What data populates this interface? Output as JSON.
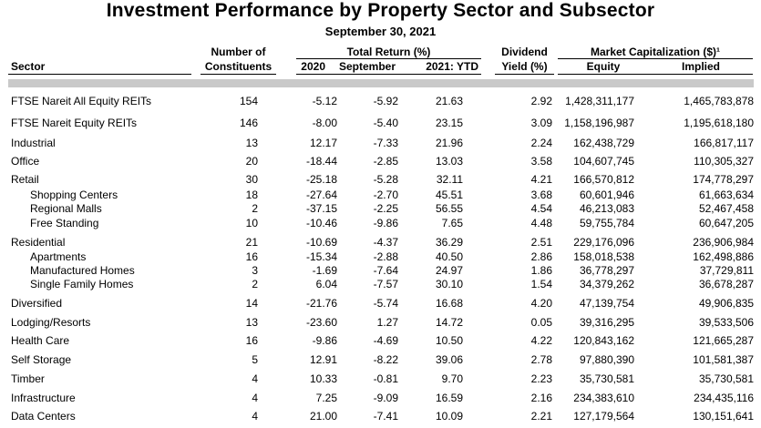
{
  "title": "Investment Performance by Property Sector and Subsector",
  "subtitle": "September 30, 2021",
  "headers": {
    "num_line1": "Number of",
    "num_line2": "Constituents",
    "total_return_group": "Total Return (%)",
    "dividend_line1": "Dividend",
    "dividend_line2": "Yield (%)",
    "market_cap_group": "Market Capitalization ($)¹",
    "sector": "Sector",
    "y2020": "2020",
    "september": "September",
    "ytd": "2021: YTD",
    "equity": "Equity",
    "implied": "Implied"
  },
  "rows": [
    {
      "sector": "FTSE Nareit All Equity REITs",
      "n": "154",
      "r2020": "-5.12",
      "sep": "-5.92",
      "ytd": "21.63",
      "div": "2.92",
      "equity": "1,428,311,177",
      "implied": "1,465,783,878",
      "sub": false
    },
    {
      "sector": "FTSE Nareit Equity REITs",
      "n": "146",
      "r2020": "-8.00",
      "sep": "-5.40",
      "ytd": "23.15",
      "div": "3.09",
      "equity": "1,158,196,987",
      "implied": "1,195,618,180",
      "sub": false
    },
    {
      "sector": "Industrial",
      "n": "13",
      "r2020": "12.17",
      "sep": "-7.33",
      "ytd": "21.96",
      "div": "2.24",
      "equity": "162,438,729",
      "implied": "166,817,117",
      "sub": false
    },
    {
      "sector": "Office",
      "n": "20",
      "r2020": "-18.44",
      "sep": "-2.85",
      "ytd": "13.03",
      "div": "3.58",
      "equity": "104,607,745",
      "implied": "110,305,327",
      "sub": false
    },
    {
      "sector": "Retail",
      "n": "30",
      "r2020": "-25.18",
      "sep": "-5.28",
      "ytd": "32.11",
      "div": "4.21",
      "equity": "166,570,812",
      "implied": "174,778,297",
      "sub": false
    },
    {
      "sector": "Shopping Centers",
      "n": "18",
      "r2020": "-27.64",
      "sep": "-2.70",
      "ytd": "45.51",
      "div": "3.68",
      "equity": "60,601,946",
      "implied": "61,663,634",
      "sub": true
    },
    {
      "sector": "Regional Malls",
      "n": "2",
      "r2020": "-37.15",
      "sep": "-2.25",
      "ytd": "56.55",
      "div": "4.54",
      "equity": "46,213,083",
      "implied": "52,467,458",
      "sub": true
    },
    {
      "sector": "Free Standing",
      "n": "10",
      "r2020": "-10.46",
      "sep": "-9.86",
      "ytd": "7.65",
      "div": "4.48",
      "equity": "59,755,784",
      "implied": "60,647,205",
      "sub": true
    },
    {
      "sector": "Residential",
      "n": "21",
      "r2020": "-10.69",
      "sep": "-4.37",
      "ytd": "36.29",
      "div": "2.51",
      "equity": "229,176,096",
      "implied": "236,906,984",
      "sub": false
    },
    {
      "sector": "Apartments",
      "n": "16",
      "r2020": "-15.34",
      "sep": "-2.88",
      "ytd": "40.50",
      "div": "2.86",
      "equity": "158,018,538",
      "implied": "162,498,886",
      "sub": true
    },
    {
      "sector": "Manufactured Homes",
      "n": "3",
      "r2020": "-1.69",
      "sep": "-7.64",
      "ytd": "24.97",
      "div": "1.86",
      "equity": "36,778,297",
      "implied": "37,729,811",
      "sub": true
    },
    {
      "sector": "Single Family Homes",
      "n": "2",
      "r2020": "6.04",
      "sep": "-7.57",
      "ytd": "30.10",
      "div": "1.54",
      "equity": "34,379,262",
      "implied": "36,678,287",
      "sub": true
    },
    {
      "sector": "Diversified",
      "n": "14",
      "r2020": "-21.76",
      "sep": "-5.74",
      "ytd": "16.68",
      "div": "4.20",
      "equity": "47,139,754",
      "implied": "49,906,835",
      "sub": false
    },
    {
      "sector": "Lodging/Resorts",
      "n": "13",
      "r2020": "-23.60",
      "sep": "1.27",
      "ytd": "14.72",
      "div": "0.05",
      "equity": "39,316,295",
      "implied": "39,533,506",
      "sub": false
    },
    {
      "sector": "Health Care",
      "n": "16",
      "r2020": "-9.86",
      "sep": "-4.69",
      "ytd": "10.50",
      "div": "4.22",
      "equity": "120,843,162",
      "implied": "121,665,287",
      "sub": false
    },
    {
      "sector": "Self Storage",
      "n": "5",
      "r2020": "12.91",
      "sep": "-8.22",
      "ytd": "39.06",
      "div": "2.78",
      "equity": "97,880,390",
      "implied": "101,581,387",
      "sub": false
    },
    {
      "sector": "Timber",
      "n": "4",
      "r2020": "10.33",
      "sep": "-0.81",
      "ytd": "9.70",
      "div": "2.23",
      "equity": "35,730,581",
      "implied": "35,730,581",
      "sub": false
    },
    {
      "sector": "Infrastructure",
      "n": "4",
      "r2020": "7.25",
      "sep": "-9.09",
      "ytd": "16.59",
      "div": "2.16",
      "equity": "234,383,610",
      "implied": "234,435,116",
      "sub": false
    },
    {
      "sector": "Data Centers",
      "n": "4",
      "r2020": "21.00",
      "sep": "-7.41",
      "ytd": "10.09",
      "div": "2.21",
      "equity": "127,179,564",
      "implied": "130,151,641",
      "sub": false
    }
  ]
}
